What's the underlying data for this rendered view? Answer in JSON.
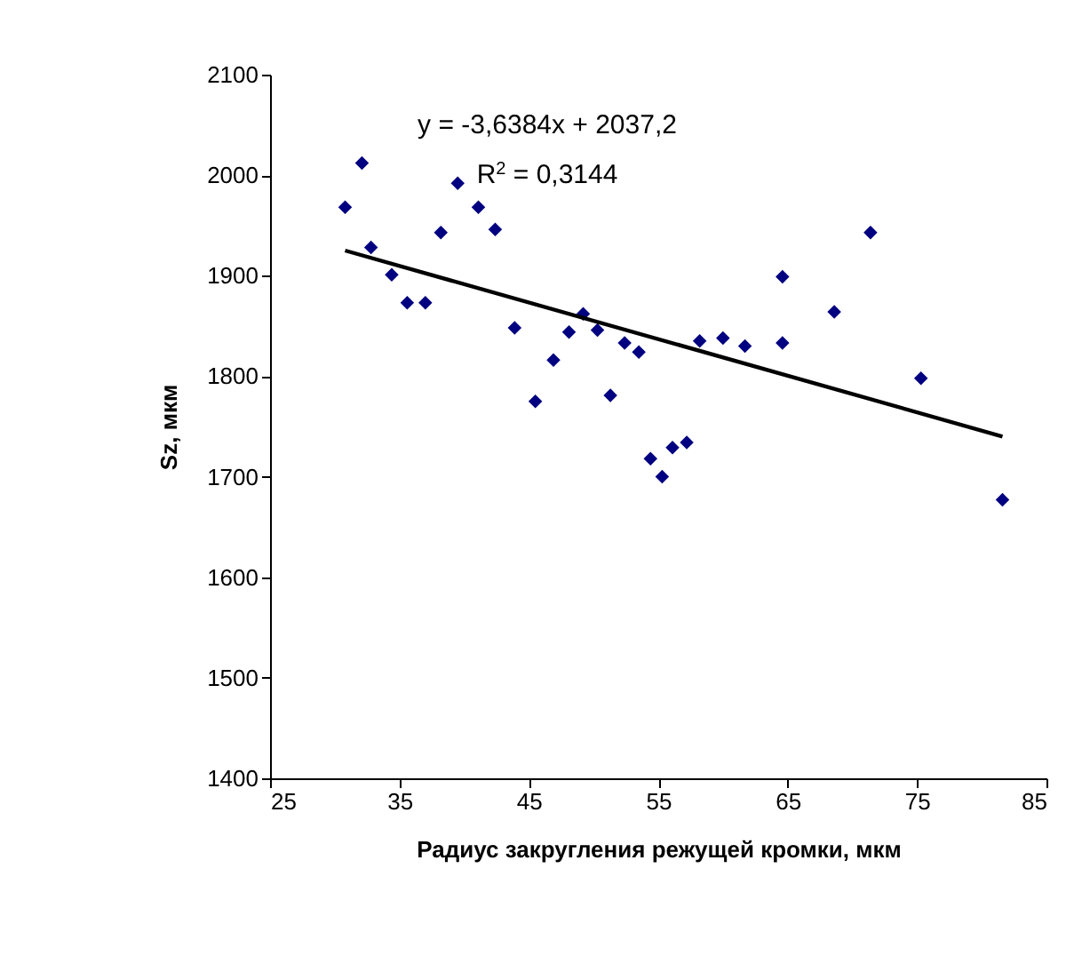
{
  "chart_data": {
    "type": "scatter",
    "xlabel": "Радиус закругления режущей кромки, мкм",
    "ylabel": "Sz, мкм",
    "xlim": [
      25,
      85
    ],
    "xticks": [
      25,
      35,
      45,
      55,
      65,
      75,
      85
    ],
    "ylim": [
      1400,
      2100
    ],
    "yticks": [
      1400,
      1500,
      1600,
      1700,
      1800,
      1900,
      2000,
      2100
    ],
    "grid": false,
    "legend": false,
    "annotations": [
      "y = -3,6384x + 2037,2",
      "R$^{2}$ = 0,3144"
    ],
    "series": [
      {
        "color": "#000080",
        "marker": "diamond",
        "x": [
          30.8,
          32.1,
          32.8,
          34.4,
          35.6,
          37.0,
          38.2,
          39.5,
          41.1,
          42.4,
          43.9,
          45.5,
          46.9,
          48.1,
          49.2,
          50.3,
          51.3,
          52.4,
          53.5,
          54.4,
          55.3,
          56.1,
          57.2,
          58.2,
          60.0,
          61.7,
          64.6,
          64.6,
          68.6,
          71.4,
          75.3,
          81.6
        ],
        "values": [
          1968,
          2012,
          1928,
          1901,
          1873,
          1873,
          1943,
          1992,
          1968,
          1946,
          1848,
          1775,
          1816,
          1844,
          1862,
          1846,
          1781,
          1833,
          1824,
          1718,
          1700,
          1729,
          1734,
          1835,
          1838,
          1830,
          1899,
          1833,
          1864,
          1943,
          1798,
          1677
        ]
      },
      {
        "type": "line",
        "color": "#000000",
        "x": [
          30.8,
          81.6
        ],
        "values": [
          1925,
          1740
        ]
      }
    ]
  }
}
